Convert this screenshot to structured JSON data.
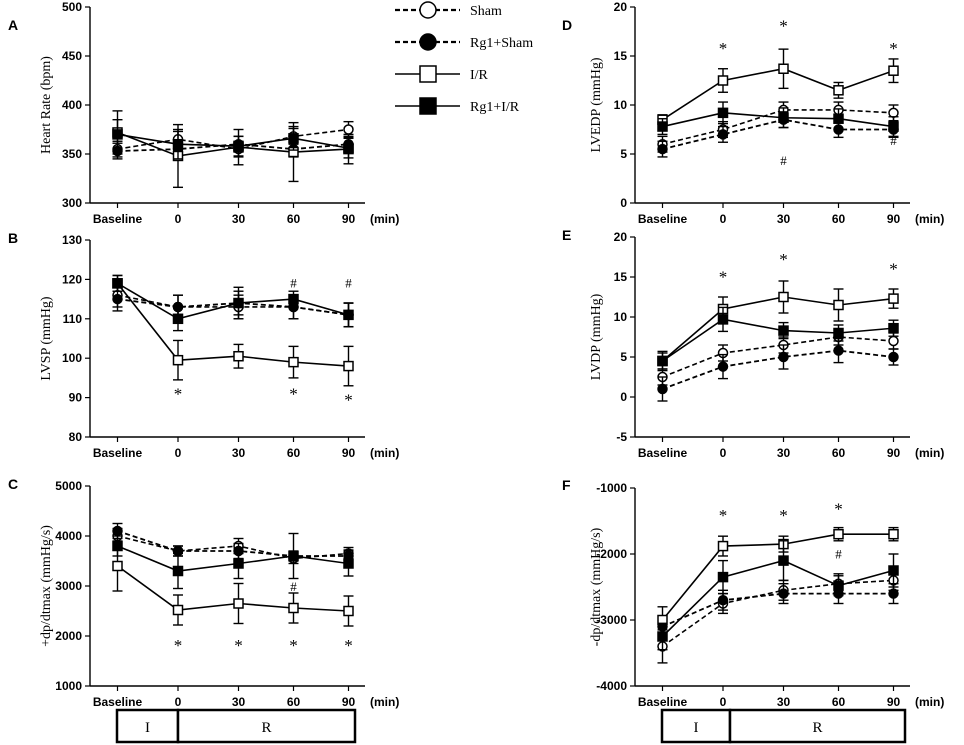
{
  "legend": [
    {
      "label": "Sham",
      "marker": "open-circle",
      "dash": true
    },
    {
      "label": "Rg1+Sham",
      "marker": "filled-circle",
      "dash": true
    },
    {
      "label": "I/R",
      "marker": "open-square",
      "dash": false
    },
    {
      "label": "Rg1+I/R",
      "marker": "filled-square",
      "dash": false
    }
  ],
  "x_unit": "(min)",
  "protocol": {
    "ischemia_label": "I",
    "reperfusion_label": "R"
  },
  "chart_data": [
    {
      "panel": "A",
      "type": "line",
      "ylabel": "Heart Rate (bpm)",
      "categories": [
        "Baseline",
        "0",
        "30",
        "60",
        "90"
      ],
      "ylim": [
        300,
        500
      ],
      "yticks": [
        300,
        350,
        400,
        450,
        500
      ],
      "series": [
        {
          "name": "Sham",
          "values": [
            355,
            365,
            355,
            368,
            375
          ],
          "err": [
            8,
            8,
            8,
            8,
            8
          ]
        },
        {
          "name": "Rg1+Sham",
          "values": [
            353,
            355,
            360,
            355,
            360
          ],
          "err": [
            8,
            8,
            8,
            8,
            8
          ]
        },
        {
          "name": "I/R",
          "values": [
            372,
            348,
            357,
            352,
            355
          ],
          "err": [
            22,
            32,
            18,
            30,
            15
          ]
        },
        {
          "name": "Rg1+I/R",
          "values": [
            370,
            360,
            358,
            366,
            356
          ],
          "err": [
            15,
            15,
            10,
            12,
            10
          ]
        }
      ],
      "stars": [],
      "hashes": []
    },
    {
      "panel": "B",
      "type": "line",
      "ylabel": "LVSP (mmHg)",
      "categories": [
        "Baseline",
        "0",
        "30",
        "60",
        "90"
      ],
      "ylim": [
        80,
        130
      ],
      "yticks": [
        80,
        90,
        100,
        110,
        120,
        130
      ],
      "series": [
        {
          "name": "Sham",
          "values": [
            116,
            113,
            113,
            113,
            111
          ],
          "err": [
            3,
            3,
            3,
            3,
            3
          ]
        },
        {
          "name": "Rg1+Sham",
          "values": [
            115,
            113,
            114,
            113,
            111
          ],
          "err": [
            3,
            3,
            3,
            3,
            3
          ]
        },
        {
          "name": "I/R",
          "values": [
            119,
            99.5,
            100.5,
            99,
            98
          ],
          "err": [
            2,
            5,
            3,
            4,
            5
          ]
        },
        {
          "name": "Rg1+I/R",
          "values": [
            119,
            110,
            114,
            115,
            111
          ],
          "err": [
            2,
            3,
            4,
            2,
            3
          ]
        }
      ],
      "stars": [
        {
          "x": "0",
          "label": "*",
          "pos": "below",
          "y": 92
        },
        {
          "x": "60",
          "label": "*",
          "pos": "below",
          "y": 92
        },
        {
          "x": "90",
          "label": "*",
          "pos": "below",
          "y": 90.5
        }
      ],
      "hashes": [
        {
          "x": "60",
          "label": "#",
          "y": 118
        },
        {
          "x": "90",
          "label": "#",
          "y": 118
        }
      ]
    },
    {
      "panel": "C",
      "type": "line",
      "ylabel": "+dp/dtmax (mmHg/s)",
      "categories": [
        "Baseline",
        "0",
        "30",
        "60",
        "90"
      ],
      "ylim": [
        1000,
        5000
      ],
      "yticks": [
        1000,
        2000,
        3000,
        4000,
        5000
      ],
      "series": [
        {
          "name": "Sham",
          "values": [
            4000,
            3700,
            3800,
            3550,
            3650
          ],
          "err": [
            150,
            100,
            150,
            100,
            120
          ]
        },
        {
          "name": "Rg1+Sham",
          "values": [
            4100,
            3700,
            3700,
            3600,
            3600
          ],
          "err": [
            150,
            100,
            150,
            100,
            120
          ]
        },
        {
          "name": "I/R",
          "values": [
            3400,
            2520,
            2650,
            2560,
            2500
          ],
          "err": [
            500,
            300,
            400,
            300,
            300
          ]
        },
        {
          "name": "Rg1+I/R",
          "values": [
            3800,
            3300,
            3450,
            3600,
            3450
          ],
          "err": [
            200,
            350,
            300,
            450,
            250
          ]
        }
      ],
      "stars": [
        {
          "x": "0",
          "label": "*",
          "pos": "below",
          "y": 1900
        },
        {
          "x": "30",
          "label": "*",
          "pos": "below",
          "y": 1900
        },
        {
          "x": "60",
          "label": "*",
          "pos": "below",
          "y": 1900
        },
        {
          "x": "90",
          "label": "*",
          "pos": "below",
          "y": 1900
        }
      ],
      "hashes": [
        {
          "x": "60",
          "label": "#",
          "y": 2900
        }
      ]
    },
    {
      "panel": "D",
      "type": "line",
      "ylabel": "LVEDP (mmHg)",
      "categories": [
        "Baseline",
        "0",
        "30",
        "60",
        "90"
      ],
      "ylim": [
        0,
        20
      ],
      "yticks": [
        0,
        5,
        10,
        15,
        20
      ],
      "series": [
        {
          "name": "Sham",
          "values": [
            6,
            7.5,
            9.5,
            9.5,
            9.2
          ],
          "err": [
            0.8,
            0.8,
            0.8,
            0.8,
            0.8
          ]
        },
        {
          "name": "Rg1+Sham",
          "values": [
            5.5,
            7,
            8.5,
            7.5,
            7.5
          ],
          "err": [
            0.8,
            0.8,
            0.8,
            0.8,
            0.8
          ]
        },
        {
          "name": "I/R",
          "values": [
            8.5,
            12.5,
            13.7,
            11.5,
            13.5
          ],
          "err": [
            0.5,
            1.2,
            2,
            0.8,
            1.2
          ]
        },
        {
          "name": "Rg1+I/R",
          "values": [
            7.8,
            9.2,
            8.7,
            8.6,
            7.8
          ],
          "err": [
            0.8,
            1.1,
            1,
            1,
            1
          ]
        }
      ],
      "stars": [
        {
          "x": "0",
          "label": "*",
          "pos": "above",
          "y": 15.2
        },
        {
          "x": "30",
          "label": "*",
          "pos": "above",
          "y": 17.5
        },
        {
          "x": "90",
          "label": "*",
          "pos": "above",
          "y": 15.2
        }
      ],
      "hashes": [
        {
          "x": "30",
          "label": "#",
          "y": 3.9
        },
        {
          "x": "90",
          "label": "#",
          "y": 5.9
        }
      ]
    },
    {
      "panel": "E",
      "type": "line",
      "ylabel": "LVDP (mmHg)",
      "categories": [
        "Baseline",
        "0",
        "30",
        "60",
        "90"
      ],
      "ylim": [
        -5,
        20
      ],
      "yticks": [
        -5,
        0,
        5,
        10,
        15,
        20
      ],
      "series": [
        {
          "name": "Sham",
          "values": [
            2.5,
            5.5,
            6.5,
            7.5,
            7
          ],
          "err": [
            1,
            1,
            1,
            1,
            1
          ]
        },
        {
          "name": "Rg1+Sham",
          "values": [
            1,
            3.8,
            5,
            5.8,
            5
          ],
          "err": [
            1.5,
            1.5,
            1.5,
            1.5,
            1
          ]
        },
        {
          "name": "I/R",
          "values": [
            4.5,
            11,
            12.5,
            11.5,
            12.3
          ],
          "err": [
            1,
            1.5,
            2,
            2,
            1.2
          ]
        },
        {
          "name": "Rg1+I/R",
          "values": [
            4.5,
            9.7,
            8.3,
            8,
            8.6
          ],
          "err": [
            1.2,
            1.5,
            1,
            1,
            1
          ]
        }
      ],
      "stars": [
        {
          "x": "0",
          "label": "*",
          "pos": "above",
          "y": 14.3
        },
        {
          "x": "30",
          "label": "*",
          "pos": "above",
          "y": 16.5
        },
        {
          "x": "90",
          "label": "*",
          "pos": "above",
          "y": 15.3
        }
      ],
      "hashes": []
    },
    {
      "panel": "F",
      "type": "line",
      "ylabel": "-dp/dtmax (mmHg/s)",
      "categories": [
        "Baseline",
        "0",
        "30",
        "60",
        "90"
      ],
      "ylim": [
        -4000,
        -1000
      ],
      "yticks": [
        -4000,
        -3000,
        -2000,
        -1000
      ],
      "series": [
        {
          "name": "Sham",
          "values": [
            -3400,
            -2750,
            -2550,
            -2450,
            -2400
          ],
          "err": [
            250,
            150,
            150,
            150,
            150
          ]
        },
        {
          "name": "Rg1+Sham",
          "values": [
            -3100,
            -2700,
            -2600,
            -2600,
            -2600
          ],
          "err": [
            150,
            150,
            150,
            150,
            150
          ]
        },
        {
          "name": "I/R",
          "values": [
            -3000,
            -1880,
            -1850,
            -1700,
            -1700
          ],
          "err": [
            200,
            150,
            120,
            100,
            100
          ]
        },
        {
          "name": "Rg1+I/R",
          "values": [
            -3250,
            -2350,
            -2100,
            -2480,
            -2250
          ],
          "err": [
            200,
            250,
            300,
            150,
            250
          ]
        }
      ],
      "stars": [
        {
          "x": "0",
          "label": "*",
          "pos": "above",
          "y": -1500
        },
        {
          "x": "30",
          "label": "*",
          "pos": "above",
          "y": -1500
        },
        {
          "x": "60",
          "label": "*",
          "pos": "above",
          "y": -1400
        }
      ],
      "hashes": [
        {
          "x": "60",
          "label": "#",
          "y": -2070
        }
      ]
    }
  ]
}
